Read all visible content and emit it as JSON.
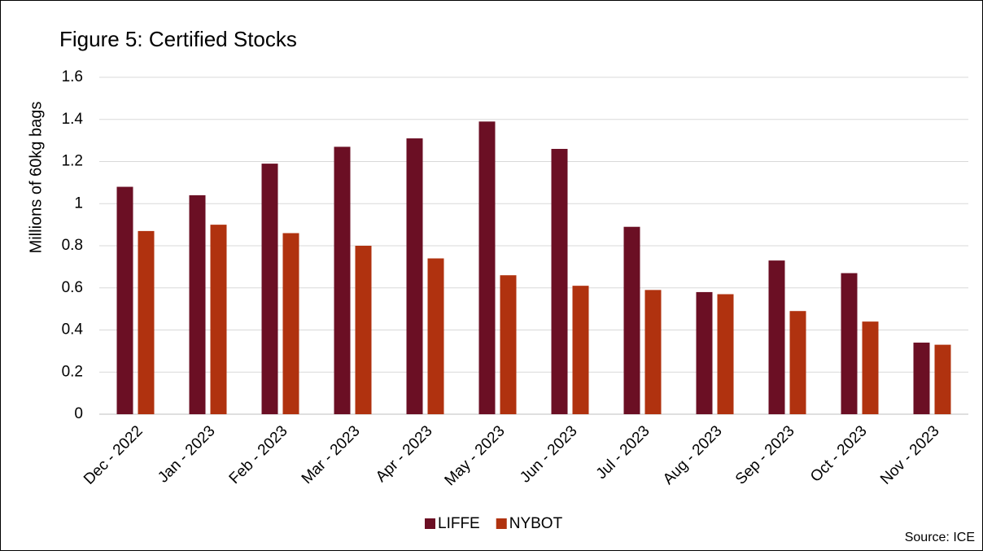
{
  "chart_data": {
    "type": "bar",
    "title": "Figure 5: Certified Stocks",
    "y_label": "Millions of 60kg bags",
    "source": "Source: ICE",
    "categories": [
      "Dec - 2022",
      "Jan - 2023",
      "Feb - 2023",
      "Mar - 2023",
      "Apr - 2023",
      "May - 2023",
      "Jun - 2023",
      "Jul - 2023",
      "Aug - 2023",
      "Sep - 2023",
      "Oct - 2023",
      "Nov - 2023"
    ],
    "series": [
      {
        "name": "LIFFE",
        "color": "#6b0f24",
        "values": [
          1.08,
          1.04,
          1.19,
          1.27,
          1.31,
          1.39,
          1.26,
          0.89,
          0.58,
          0.73,
          0.67,
          0.34
        ]
      },
      {
        "name": "NYBOT",
        "color": "#b0320f",
        "values": [
          0.87,
          0.9,
          0.86,
          0.8,
          0.74,
          0.66,
          0.61,
          0.59,
          0.57,
          0.49,
          0.44,
          0.33
        ]
      }
    ],
    "ylim": [
      0,
      1.6
    ],
    "yticks": [
      0,
      0.2,
      0.4,
      0.6,
      0.8,
      1,
      1.2,
      1.4,
      1.6
    ],
    "grid": true,
    "legend": "bottom"
  }
}
